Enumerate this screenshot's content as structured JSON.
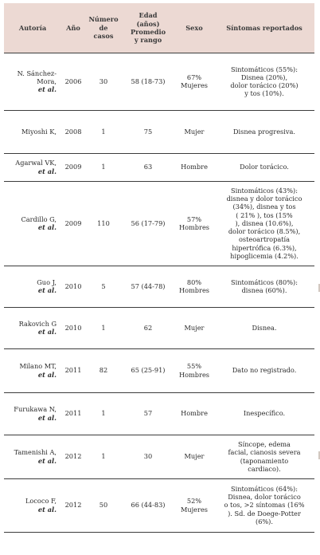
{
  "table": {
    "headers": {
      "autoria": "Autoría",
      "anio": "Año",
      "casos": [
        "Número",
        "de",
        "casos"
      ],
      "edad": [
        "Edad",
        "(años)",
        "Promedio",
        "y rango"
      ],
      "sexo": "Sexo",
      "sintomas": "Síntomas reportados"
    },
    "rows": [
      {
        "author": [
          "N. Sánchez-",
          "Mora,"
        ],
        "etal": "et al.",
        "year": "2006",
        "cases": "30",
        "age": "58 (18-73)",
        "sex": [
          "67%",
          "Mujeres"
        ],
        "symptoms": [
          "Sintomáticos (55%):",
          "Disnea (20%),",
          "dolor torácico (20%)",
          "y tos (10%)."
        ]
      },
      {
        "author": [
          "Miyoshi K,"
        ],
        "etal": "",
        "year": "2008",
        "cases": "1",
        "age": "75",
        "sex": [
          "Mujer"
        ],
        "symptoms": [
          "Disnea progresiva."
        ]
      },
      {
        "author": [
          "Agarwal VK,"
        ],
        "etal": "et al.",
        "year": "2009",
        "cases": "1",
        "age": "63",
        "sex": [
          "Hombre"
        ],
        "symptoms": [
          "Dolor torácico."
        ]
      },
      {
        "author": [
          "Cardillo G,"
        ],
        "etal": "et al.",
        "year": "2009",
        "cases": "110",
        "age": "56 (17-79)",
        "sex": [
          "57%",
          "Hombres"
        ],
        "symptoms": [
          "Sintomáticos (43%):",
          "disnea y dolor torácico",
          "(34%), disnea y tos",
          "( 21% ), tos (15%",
          "), disnea (10.6%),",
          "dolor torácico (8.5%),",
          "osteoartropatía",
          "hipertrófica (6.3%),",
          "hipoglicemia (4.2%)."
        ]
      },
      {
        "author": [
          "Guo J,"
        ],
        "etal": "et al.",
        "year": "2010",
        "cases": "5",
        "age": "57 (44-78)",
        "sex": [
          "80%",
          "Hombres"
        ],
        "symptoms": [
          "Sintomáticos (80%):",
          "disnea (60%)."
        ]
      },
      {
        "author": [
          "Rakovich G"
        ],
        "etal": "et al.",
        "year": "2010",
        "cases": "1",
        "age": "62",
        "sex": [
          "Mujer"
        ],
        "symptoms": [
          "Disnea."
        ]
      },
      {
        "author": [
          "Milano MT,"
        ],
        "etal": "et al.",
        "year": "2011",
        "cases": "82",
        "age": "65 (25-91)",
        "sex": [
          "55%",
          "Hombres"
        ],
        "symptoms": [
          "Dato no registrado."
        ]
      },
      {
        "author": [
          "Furukawa N,"
        ],
        "etal": "et al.",
        "year": "2011",
        "cases": "1",
        "age": "57",
        "sex": [
          "Hombre"
        ],
        "symptoms": [
          "Inespecífico."
        ]
      },
      {
        "author": [
          "Tamenishi A,"
        ],
        "etal": "et al.",
        "year": "2012",
        "cases": "1",
        "age": "30",
        "sex": [
          "Mujer"
        ],
        "symptoms": [
          "Síncope, edema",
          "facial, cianosis severa",
          "(taponamiento",
          "cardiaco)."
        ]
      },
      {
        "author": [
          "Lococo F,"
        ],
        "etal": "et al.",
        "year": "2012",
        "cases": "50",
        "age": "66 (44-83)",
        "sex": [
          "52%",
          "Mujeres"
        ],
        "symptoms": [
          "Sintomáticos (64%):",
          "Disnea, dolor torácico",
          "o tos, >2 síntomas (16%",
          "). Sd. de Doege-Potter",
          "(6%)."
        ]
      }
    ]
  },
  "colors": {
    "header_bg": "#ecd9d3",
    "rule": "#3c3c3c"
  }
}
